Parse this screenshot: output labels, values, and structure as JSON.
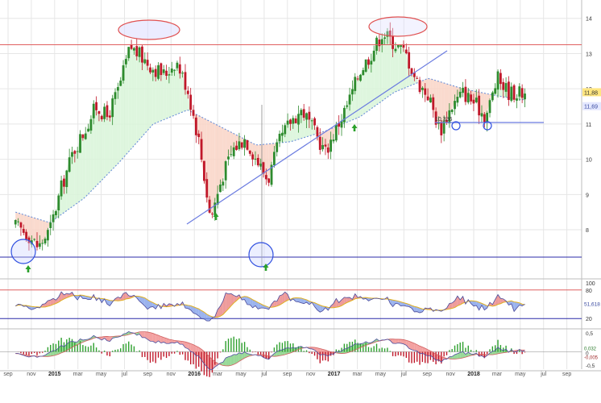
{
  "colors": {
    "up": "#2e8b2e",
    "down": "#c0182a",
    "ma": "#6a8fd8",
    "fill_above": "#d8f5d8",
    "fill_below": "#f9d3c6",
    "resistance": "#e06060",
    "support": "#2b2ba8",
    "trend": "#6a7be0",
    "circle_blue": "#3050e0",
    "circle_red": "#e05050",
    "arrow": "#2aa02a",
    "grid": "#e6e6e6",
    "axis_text": "#333333",
    "rsi_line": "#4a4a9a",
    "rsi_signal": "#e0b020",
    "macd_pos": "#2ea02e",
    "macd_neg": "#c0182a",
    "last_price_bg": "#ffe680",
    "ma_label_bg": "#e4e8ff"
  },
  "chart_data": [
    {
      "type": "line",
      "panel": "price",
      "x_axis_labels": [
        "sep",
        "nov",
        "2015",
        "mar",
        "may",
        "jul",
        "sep",
        "nov",
        "2016",
        "mar",
        "may",
        "jul",
        "sep",
        "nov",
        "2017",
        "mar",
        "may",
        "jul",
        "sep",
        "nov",
        "2018",
        "mar",
        "may",
        "jul",
        "sep"
      ],
      "y_tick_labels": [
        "14",
        "13",
        "12",
        "11",
        "10",
        "9",
        "8"
      ],
      "ylim": [
        7.2,
        14.2
      ],
      "price_labels": {
        "last": "11,88",
        "ma": "11,69"
      },
      "annotation": "10,336",
      "resistance_level": 13.25,
      "support_level": 7.2,
      "support2_level": 10.3,
      "series": [
        {
          "x": [
            "2014-09",
            "2014-10",
            "2014-11",
            "2014-12",
            "2015-01",
            "2015-02",
            "2015-03",
            "2015-04",
            "2015-05",
            "2015-06",
            "2015-07",
            "2015-08",
            "2015-09",
            "2015-10",
            "2015-11",
            "2015-12",
            "2016-01",
            "2016-02",
            "2016-03",
            "2016-04",
            "2016-05",
            "2016-06",
            "2016-07",
            "2016-08",
            "2016-09",
            "2016-10",
            "2016-11",
            "2016-12",
            "2017-01",
            "2017-02",
            "2017-03",
            "2017-04",
            "2017-05",
            "2017-06",
            "2017-07",
            "2017-08",
            "2017-09",
            "2017-10",
            "2017-11",
            "2017-12",
            "2018-01",
            "2018-02",
            "2018-03",
            "2018-04",
            "2018-05"
          ],
          "values": [
            8.1,
            7.9,
            7.5,
            8.0,
            9.2,
            10.2,
            10.8,
            11.5,
            11.2,
            12.0,
            13.2,
            12.9,
            12.6,
            12.4,
            12.8,
            12.0,
            10.5,
            8.3,
            9.5,
            10.3,
            10.6,
            10.0,
            9.4,
            10.5,
            11.1,
            11.4,
            10.8,
            10.2,
            10.9,
            11.6,
            12.5,
            13.0,
            13.6,
            13.3,
            13.0,
            12.2,
            11.8,
            10.8,
            11.5,
            11.9,
            11.6,
            11.2,
            12.3,
            11.9,
            11.88
          ]
        },
        {
          "x": [
            "2014-09",
            "2014-12",
            "2015-03",
            "2015-06",
            "2015-09",
            "2015-12",
            "2016-03",
            "2016-06",
            "2016-09",
            "2016-12",
            "2017-03",
            "2017-06",
            "2017-09",
            "2017-12",
            "2018-03",
            "2018-05"
          ],
          "values": [
            8.5,
            8.2,
            8.9,
            9.9,
            11.0,
            11.4,
            10.9,
            10.4,
            10.5,
            10.8,
            11.2,
            11.9,
            12.3,
            12.0,
            11.8,
            11.69
          ]
        }
      ]
    },
    {
      "type": "line",
      "panel": "rsi",
      "y_tick_labels": [
        "100",
        "80",
        "20"
      ],
      "level_label": "51,618",
      "ylim": [
        0,
        100
      ],
      "levels": [
        80,
        20
      ]
    },
    {
      "type": "bar",
      "panel": "macd",
      "y_tick_labels": [
        "0,5",
        "0",
        "-0,5"
      ],
      "value_labels": [
        "0,032",
        "-0,005"
      ]
    }
  ]
}
